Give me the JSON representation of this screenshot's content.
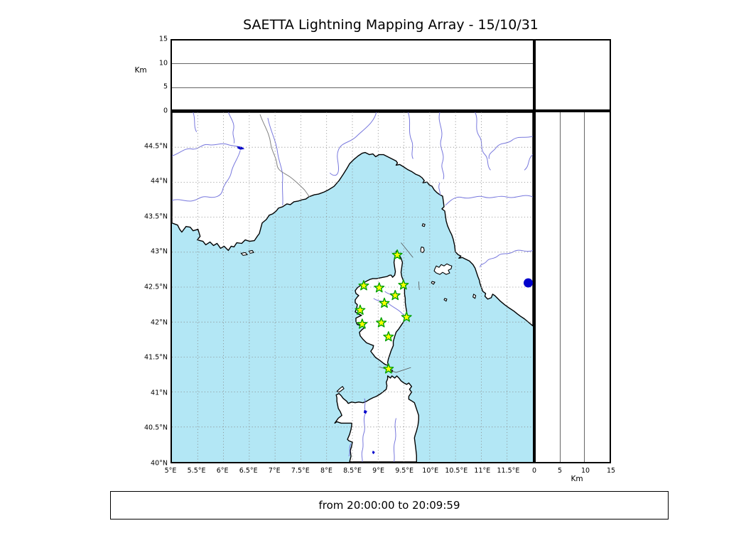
{
  "title": "SAETTA Lightning Mapping Array - 15/10/31",
  "footer": {
    "time_range": "from 20:00:00 to 20:09:59"
  },
  "altitude_axis": {
    "label": "Km",
    "min": 0,
    "max": 15,
    "ticks": [
      {
        "label": "0",
        "value": 0
      },
      {
        "label": "5",
        "value": 5
      },
      {
        "label": "10",
        "value": 10
      },
      {
        "label": "15",
        "value": 15
      }
    ],
    "gridlines": [
      5,
      10
    ]
  },
  "map_axes": {
    "lon_min": 5,
    "lon_max": 12,
    "lat_min": 40,
    "lat_max": 45,
    "grid_step_deg": 0.5,
    "lon_ticks": [
      {
        "label": "5°E",
        "value": 5
      },
      {
        "label": "5.5°E",
        "value": 5.5
      },
      {
        "label": "6°E",
        "value": 6
      },
      {
        "label": "6.5°E",
        "value": 6.5
      },
      {
        "label": "7°E",
        "value": 7
      },
      {
        "label": "7.5°E",
        "value": 7.5
      },
      {
        "label": "8°E",
        "value": 8
      },
      {
        "label": "8.5°E",
        "value": 8.5
      },
      {
        "label": "9°E",
        "value": 9
      },
      {
        "label": "9.5°E",
        "value": 9.5
      },
      {
        "label": "10°E",
        "value": 10
      },
      {
        "label": "10.5°E",
        "value": 10.5
      },
      {
        "label": "11°E",
        "value": 11
      },
      {
        "label": "11.5°E",
        "value": 11.5
      }
    ],
    "lat_ticks": [
      {
        "label": "44.5°N",
        "value": 44.5
      },
      {
        "label": "44°N",
        "value": 44
      },
      {
        "label": "43.5°N",
        "value": 43.5
      },
      {
        "label": "43°N",
        "value": 43
      },
      {
        "label": "42.5°N",
        "value": 42.5
      },
      {
        "label": "42°N",
        "value": 42
      },
      {
        "label": "41.5°N",
        "value": 41.5
      },
      {
        "label": "41°N",
        "value": 41
      },
      {
        "label": "40.5°N",
        "value": 40.5
      },
      {
        "label": "40°N",
        "value": 40
      }
    ]
  },
  "chart_data": {
    "type": "scatter",
    "title": "SAETTA Lightning Mapping Array - 15/10/31",
    "subtitle": "from 20:00:00 to 20:09:59",
    "map_panel": {
      "xlim": [
        5,
        12
      ],
      "ylim": [
        40,
        45
      ],
      "grid": "dashed 0.5deg",
      "region": "Corsica, Ligurian Sea, NW Italy, SE France, N Sardinia"
    },
    "altitude_panel_top": {
      "ylabel": "Km",
      "ylim": [
        0,
        15
      ],
      "yticks": [
        0,
        5,
        10,
        15
      ],
      "points": []
    },
    "altitude_panel_right": {
      "xlabel": "Km",
      "xlim": [
        0,
        15
      ],
      "xticks": [
        0,
        5,
        10,
        15
      ],
      "points": []
    },
    "series": [
      {
        "name": "LMA station",
        "marker": "star",
        "fill": "#FFFF00",
        "edge": "#00A000",
        "points_lon_lat": [
          [
            9.37,
            42.96
          ],
          [
            8.72,
            42.52
          ],
          [
            9.02,
            42.49
          ],
          [
            9.49,
            42.53
          ],
          [
            9.33,
            42.38
          ],
          [
            9.12,
            42.27
          ],
          [
            8.65,
            42.17
          ],
          [
            9.55,
            42.07
          ],
          [
            9.06,
            41.99
          ],
          [
            8.69,
            41.97
          ],
          [
            9.2,
            41.79
          ],
          [
            9.2,
            41.33
          ]
        ]
      }
    ],
    "map_features": {
      "lake_dot": {
        "lon": 11.91,
        "lat": 42.56,
        "color": "#0000CC"
      }
    }
  },
  "colors": {
    "sea": "#B3E7F5",
    "land": "#FFFFFF",
    "coast": "#000000",
    "river": "#7777DD",
    "country_border": "#808080",
    "grid": "#888888",
    "lake": "#0000CC",
    "star_fill": "#FFFF00",
    "star_edge": "#00A000"
  }
}
